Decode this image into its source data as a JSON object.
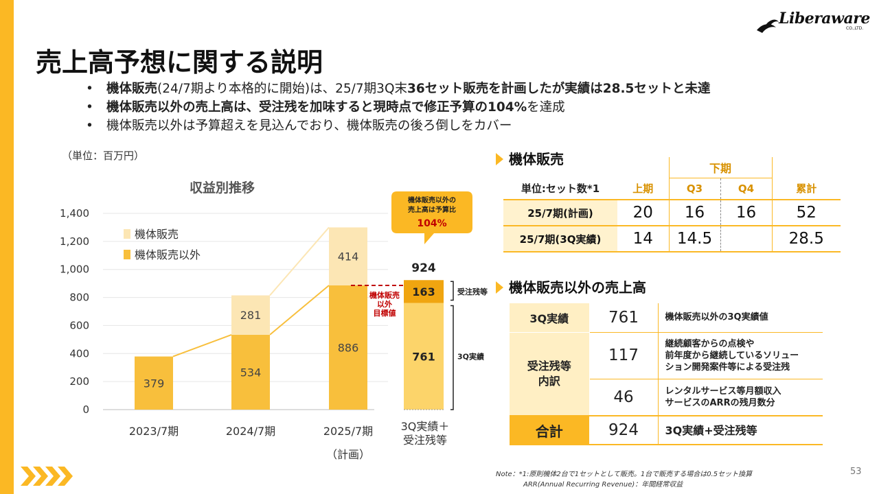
{
  "page": {
    "title": "売上高予想に関する説明",
    "logo": "Liberaware",
    "logo_sub": "CO.,LTD.",
    "page_number": "53",
    "accent_color": "#FBB824"
  },
  "bullets": [
    {
      "pre_bold": "機体販売",
      "mid": "(24/7期より本格的に開始)は、25/7期3Q末",
      "bold2": "36セット販売を計画したが実績は28.5",
      "post": "セットと未達"
    },
    {
      "pre_bold": "機体販売以外の売上高は、受注残を加味すると現時点で修正予算の104%",
      "mid": "を達成",
      "bold2": "",
      "post": ""
    },
    {
      "pre_bold": "",
      "mid": "機体販売以外は予算超えを見込んでおり、機体販売の後ろ倒しをカバー",
      "bold2": "",
      "post": ""
    }
  ],
  "unit_label": "（単位：百万円）",
  "chart_data": {
    "type": "bar",
    "title": "収益別推移",
    "ylim": [
      0,
      1400
    ],
    "yticks": [
      "0",
      "200",
      "400",
      "600",
      "800",
      "1,000",
      "1,200",
      "1,400"
    ],
    "categories": [
      "2023/7期",
      "2024/7期",
      "2025/7期"
    ],
    "category_sub": [
      "",
      "",
      "（計画）"
    ],
    "series": [
      {
        "name": "機体販売以外",
        "values": [
          379,
          534,
          886
        ],
        "color": "#F8BF3C"
      },
      {
        "name": "機体販売",
        "values": [
          0,
          281,
          414
        ],
        "color": "#FCE6B4"
      }
    ],
    "value_labels": {
      "other": [
        "379",
        "534",
        "886"
      ],
      "machine": [
        "",
        "281",
        "414"
      ]
    },
    "extra_bar": {
      "category": "3Q実績＋",
      "category_line2": "受注残等",
      "segments": [
        {
          "label": "3Q実績",
          "value": 761,
          "text": "761",
          "color": "#FCD46A"
        },
        {
          "label": "受注残等",
          "value": 163,
          "text": "163",
          "color": "#F0A510"
        }
      ],
      "total_text": "924"
    },
    "target_label": [
      "機体販売",
      "以外",
      "目標値"
    ],
    "callout": {
      "line1": "機体販売以外の",
      "line2": "売上高は予算比",
      "pct": "104%"
    }
  },
  "section1": {
    "title": "機体販売",
    "group_header": "下期",
    "columns": [
      "単位:セット数*1",
      "上期",
      "Q3",
      "Q4",
      "累計"
    ],
    "rows": [
      {
        "label": "25/7期(計画)",
        "values": [
          "20",
          "16",
          "16",
          "52"
        ]
      },
      {
        "label": "25/7期(3Q実績)",
        "values": [
          "14",
          "14.5",
          "",
          "28.5"
        ]
      }
    ]
  },
  "section2": {
    "title": "機体販売以外の売上高",
    "rows": [
      {
        "label": "3Q実績",
        "value": "761",
        "desc": [
          "機体販売以外の3Q実績値"
        ]
      },
      {
        "label": "受注残等\n内訳",
        "value": "117",
        "desc": [
          "継続顧客からの点検や",
          "前年度から継続しているソリュー",
          "ション開発案件等による受注残"
        ]
      },
      {
        "label": "",
        "value": "46",
        "desc": [
          "レンタルサービス等月額収入",
          "サービスのARRの残月数分"
        ]
      },
      {
        "label": "合計",
        "value": "924",
        "desc": [
          "3Q実績+受注残等"
        ]
      }
    ]
  },
  "note": {
    "line1": "Note：*1:原則機体2台で1セットとして販売。1台で販売する場合は0.5セット換算",
    "line2": "ARR(Annual Recurring Revenue)：年間経常収益"
  }
}
